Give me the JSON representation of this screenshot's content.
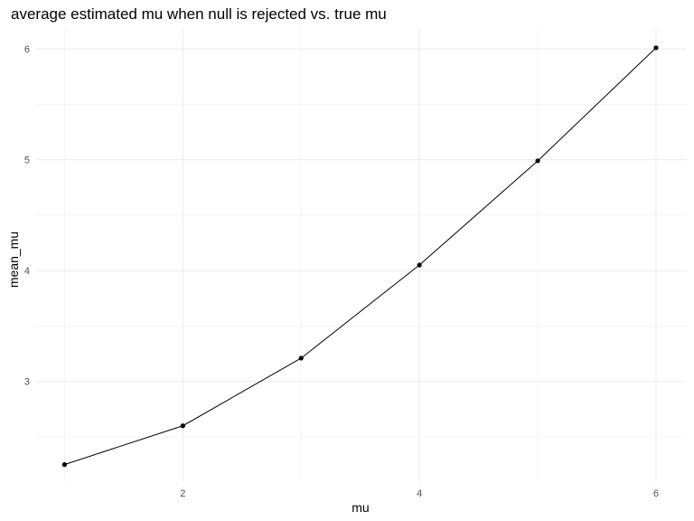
{
  "chart_data": {
    "type": "line",
    "title": "average estimated mu when null is rejected vs. true mu",
    "xlabel": "mu",
    "ylabel": "mean_mu",
    "x": [
      1,
      2,
      3,
      4,
      5,
      6
    ],
    "series": [
      {
        "values": [
          2.25,
          2.6,
          3.21,
          4.05,
          4.99,
          6.01
        ]
      }
    ],
    "xticks": [
      2,
      4,
      6
    ],
    "yticks": [
      3,
      4,
      5,
      6
    ],
    "xlim": [
      0.76,
      6.26
    ],
    "ylim": [
      2.1,
      6.18
    ],
    "grid": true,
    "colors": {
      "line": "#000000",
      "point": "#000000",
      "grid": "#ebebeb"
    }
  }
}
